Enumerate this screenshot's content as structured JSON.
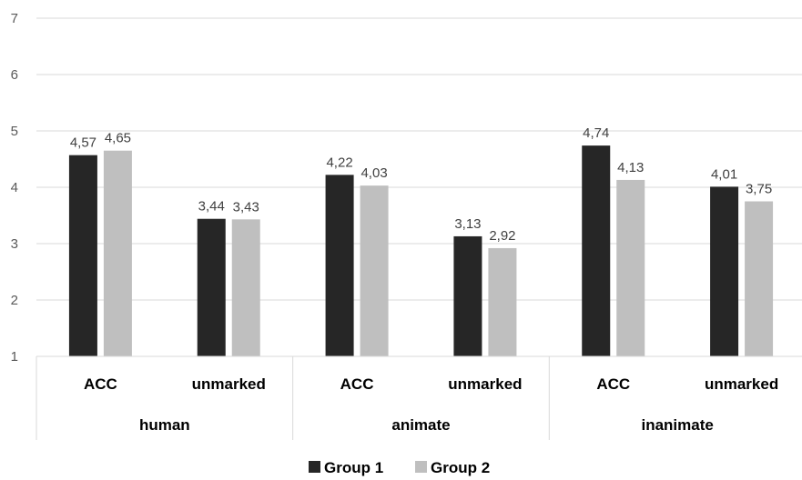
{
  "chart_data": {
    "type": "bar",
    "groups": [
      "human",
      "animate",
      "inanimate"
    ],
    "subcategories": [
      "ACC",
      "unmarked"
    ],
    "categories": [
      {
        "group": "human",
        "label": "ACC"
      },
      {
        "group": "human",
        "label": "unmarked"
      },
      {
        "group": "animate",
        "label": "ACC"
      },
      {
        "group": "animate",
        "label": "unmarked"
      },
      {
        "group": "inanimate",
        "label": "ACC"
      },
      {
        "group": "inanimate",
        "label": "unmarked"
      }
    ],
    "series": [
      {
        "name": "Group 1",
        "color": "#262626",
        "values": [
          4.57,
          3.44,
          4.22,
          3.13,
          4.74,
          4.01
        ],
        "labels": [
          "4,57",
          "3,44",
          "4,22",
          "3,13",
          "4,74",
          "4,01"
        ]
      },
      {
        "name": "Group 2",
        "color": "#bfbfbf",
        "values": [
          4.65,
          3.43,
          4.03,
          2.92,
          4.13,
          3.75
        ],
        "labels": [
          "4,65",
          "3,43",
          "4,03",
          "2,92",
          "4,13",
          "3,75"
        ]
      }
    ],
    "y_ticks": [
      "1",
      "2",
      "3",
      "4",
      "5",
      "6",
      "7"
    ],
    "ylim": [
      1,
      7
    ],
    "grid": true,
    "legend_position": "bottom",
    "gridline_color": "#d9d9d9",
    "axis_line_color": "#d9d9d9"
  }
}
